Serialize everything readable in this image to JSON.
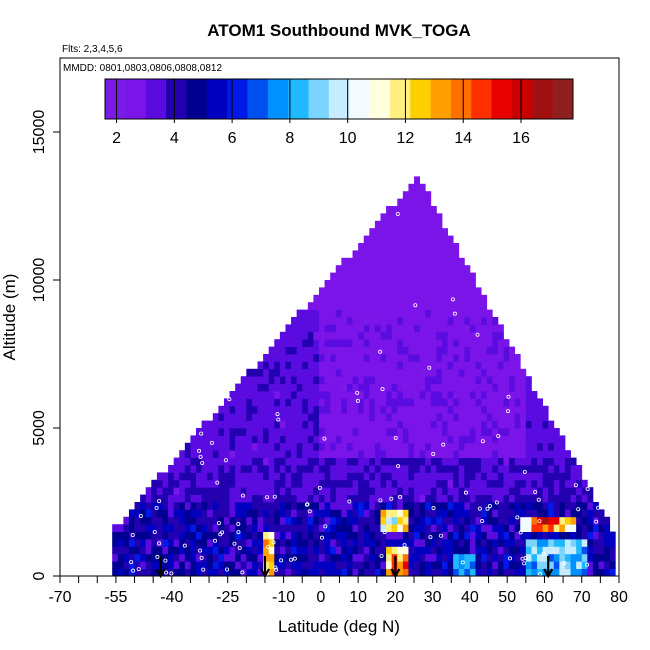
{
  "chart_data": {
    "type": "heatmap",
    "title": "ATOM1 Southbound MVK_TOGA",
    "subtitle_flights": "Flts: 2,3,4,5,6",
    "subtitle_dates": "MMDD: 0801,0803,0806,0808,0812",
    "xlabel": "Latitude (deg N)",
    "ylabel": "Altitude (m)",
    "xlim": [
      -70,
      80
    ],
    "ylim": [
      0,
      17500
    ],
    "xticks": [
      "-70",
      "-55",
      "-40",
      "-25",
      "-10",
      "0",
      "10",
      "20",
      "30",
      "40",
      "50",
      "60",
      "70",
      "80"
    ],
    "yticks": [
      "0",
      "5000",
      "10000",
      "15000"
    ],
    "colorbar": {
      "ticks": [
        "2",
        "4",
        "6",
        "8",
        "10",
        "12",
        "14",
        "16"
      ],
      "range": [
        1.6,
        17.8
      ],
      "colors": [
        "#7b1ae6",
        "#7a14e8",
        "#5a0ce0",
        "#2200b0",
        "#000090",
        "#0000c0",
        "#0018e8",
        "#0050f0",
        "#0090ff",
        "#20b8ff",
        "#7ad4ff",
        "#c8ecff",
        "#f4fbff",
        "#ffffe0",
        "#fff080",
        "#ffd000",
        "#ffa000",
        "#ff7000",
        "#ff3000",
        "#e80000",
        "#c80000",
        "#a01010",
        "#902020"
      ]
    },
    "profile_arrows_lat": [
      -43,
      -15,
      20,
      61
    ],
    "color_legend_label_note": ""
  }
}
